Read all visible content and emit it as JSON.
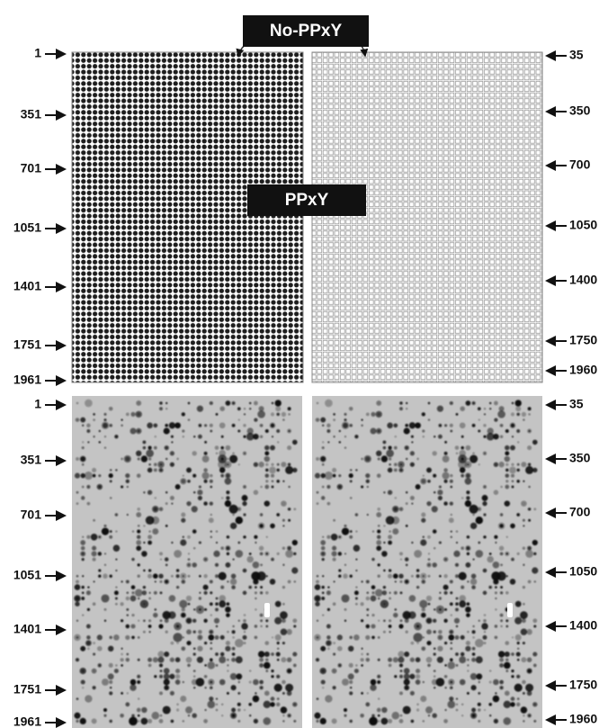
{
  "callouts": {
    "top": "No-PPxY",
    "middle": "PPxY"
  },
  "panels": [
    {
      "left_labels": [
        1,
        351,
        701,
        1051,
        1401,
        1751,
        1961
      ],
      "right_labels": [
        35,
        350,
        700,
        1050,
        1400,
        1750,
        1960
      ]
    },
    {
      "left_labels": [
        1,
        351,
        701,
        1051,
        1401,
        1751,
        1961
      ],
      "right_labels": [
        35,
        350,
        700,
        1050,
        1400,
        1750,
        1960
      ]
    }
  ]
}
